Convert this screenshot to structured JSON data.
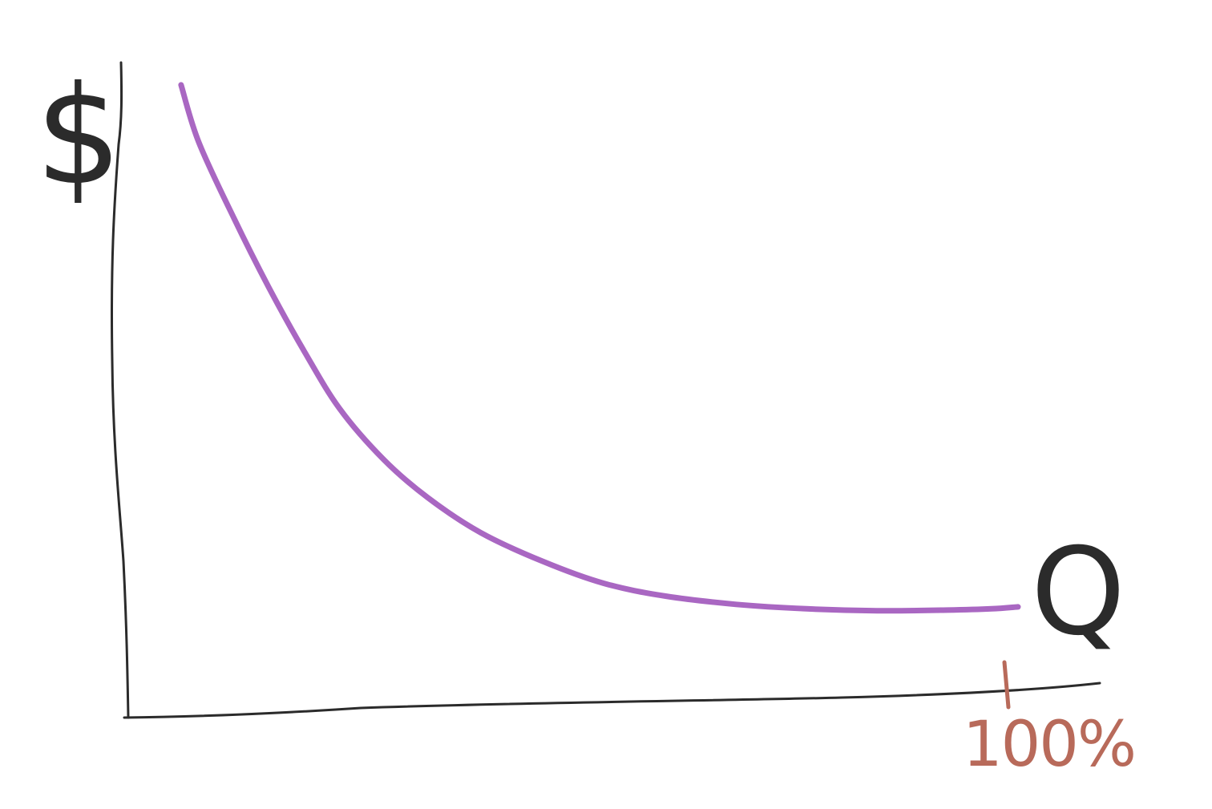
{
  "chart_data": {
    "type": "line",
    "title": "",
    "ylabel": "$",
    "xlabel": "Q",
    "x_ticks": [
      {
        "x": 1.0,
        "label": "100%"
      }
    ],
    "xlim": [
      0,
      1.1
    ],
    "ylim": [
      0,
      1
    ],
    "grid": false,
    "legend": "none",
    "series": [
      {
        "color": "#a967c2",
        "x": [
          0.06,
          0.08,
          0.12,
          0.16,
          0.2,
          0.24,
          0.29,
          0.34,
          0.4,
          0.47,
          0.54,
          0.61,
          0.69,
          0.77,
          0.85,
          0.93,
          0.98,
          1.01
        ],
        "y": [
          0.99,
          0.9,
          0.78,
          0.67,
          0.57,
          0.48,
          0.4,
          0.34,
          0.285,
          0.24,
          0.205,
          0.185,
          0.172,
          0.165,
          0.162,
          0.163,
          0.165,
          0.168
        ]
      }
    ],
    "colors": {
      "axes": "#2b2b2b",
      "curve": "#a967c2",
      "tick_label": "#b86a5a"
    }
  }
}
